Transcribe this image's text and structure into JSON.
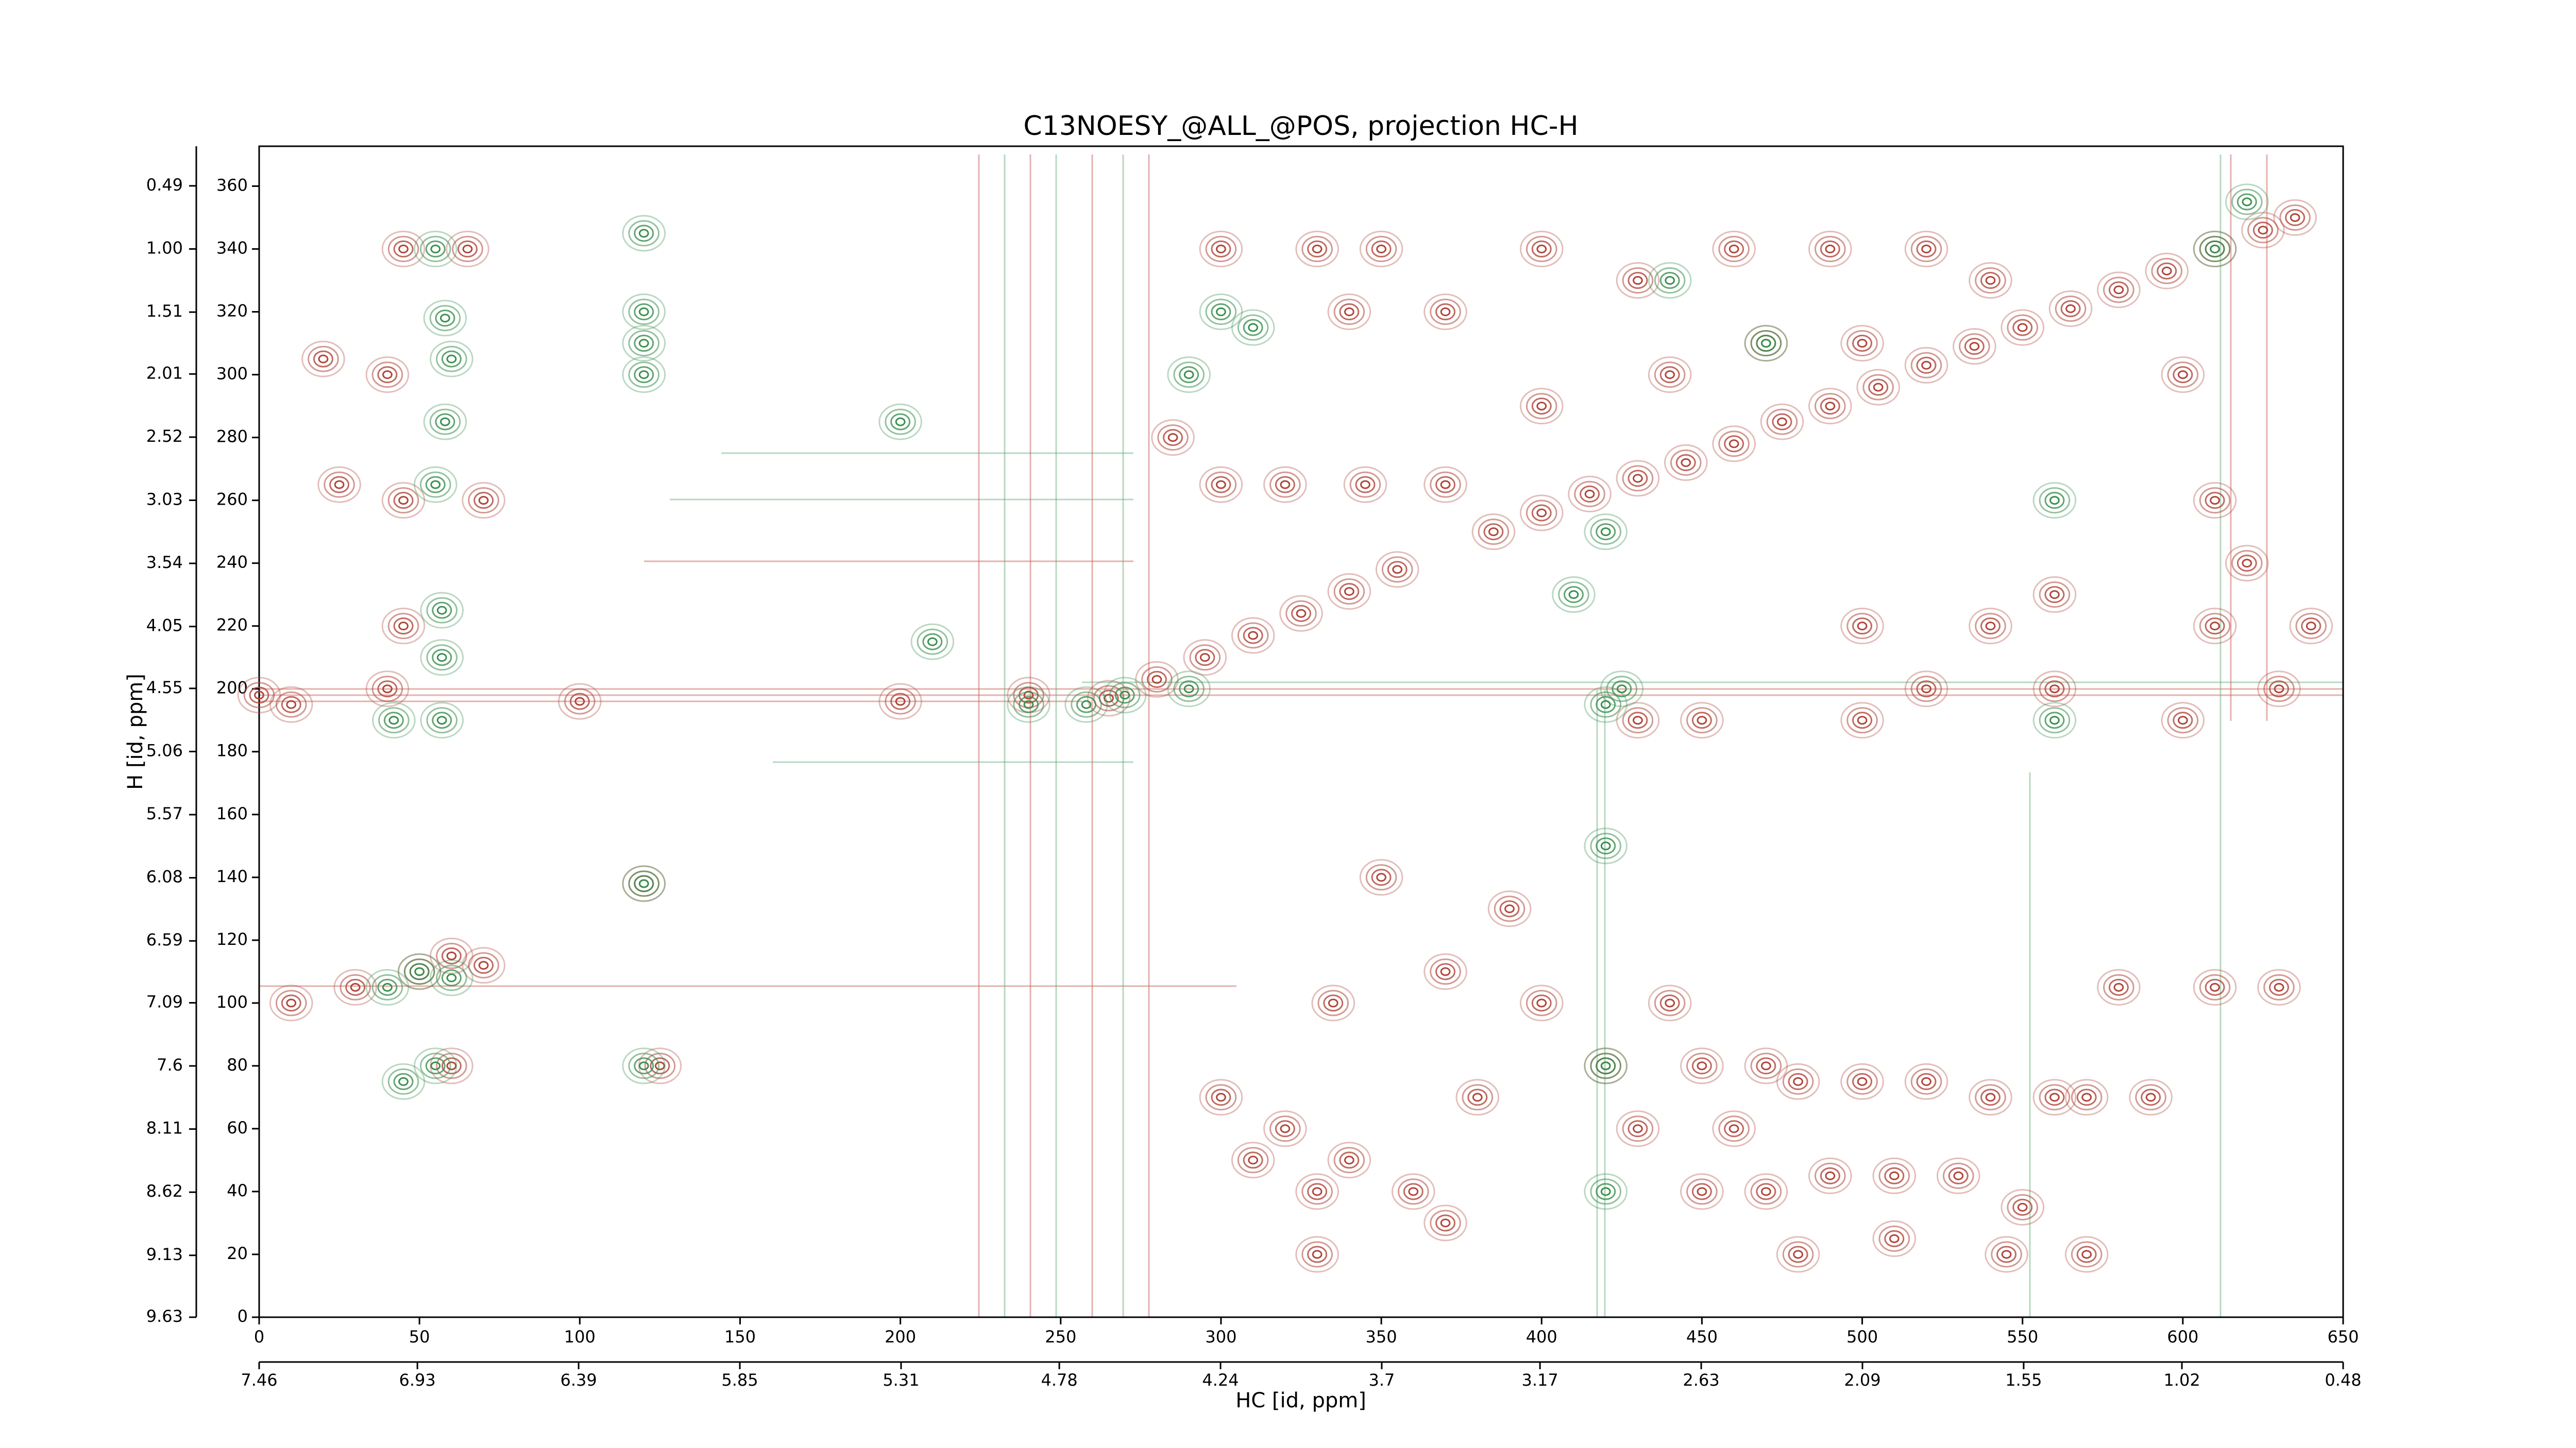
{
  "chart_data": {
    "type": "contour",
    "title": "C13NOESY_@ALL_@POS, projection HC-H",
    "x_label": "HC [id, ppm]",
    "y_label": "H [id, ppm]",
    "xlim": [
      0,
      650
    ],
    "xticks": [
      0,
      50,
      100,
      150,
      200,
      250,
      300,
      350,
      400,
      450,
      500,
      550,
      600,
      650
    ],
    "x2lim": [
      7.46,
      0.48
    ],
    "x2ticks": [
      7.46,
      6.93,
      6.39,
      5.85,
      5.31,
      4.78,
      4.24,
      3.7,
      3.17,
      2.63,
      2.09,
      1.55,
      1.02,
      0.48
    ],
    "ylim": [
      0,
      372.7
    ],
    "yticks": [
      0,
      20,
      40,
      60,
      80,
      100,
      120,
      140,
      160,
      180,
      200,
      220,
      240,
      260,
      280,
      300,
      320,
      340,
      360
    ],
    "y2lim": [
      9.63,
      0.17
    ],
    "y2ticks": [
      9.63,
      9.13,
      8.62,
      8.11,
      7.6,
      7.09,
      6.59,
      6.08,
      5.57,
      5.06,
      4.55,
      4.05,
      3.54,
      3.03,
      2.52,
      2.01,
      1.51,
      {
        "value": 1,
        "label": "1.00"
      },
      0.49
    ],
    "series": [
      {
        "color": "#b0453a",
        "x": [
          265,
          280,
          295,
          310,
          325,
          340,
          355,
          385,
          400,
          415,
          430,
          445,
          460,
          475,
          490,
          505,
          520,
          535,
          550,
          565,
          580,
          595,
          610,
          625,
          635,
          350,
          330,
          300,
          340,
          370,
          400,
          430,
          460,
          490,
          520,
          540,
          285,
          300,
          320,
          345,
          370,
          400,
          440,
          470,
          500,
          600,
          610,
          620,
          640,
          610,
          630,
          600,
          430,
          450,
          500,
          520,
          560,
          500,
          540,
          560,
          300,
          320,
          340,
          360,
          310,
          330,
          380,
          400,
          420,
          430,
          440,
          450,
          460,
          450,
          470,
          480,
          500,
          520,
          540,
          560,
          570,
          590,
          470,
          490,
          510,
          530,
          550,
          480,
          510,
          545,
          570,
          580,
          610,
          630,
          335,
          350,
          370,
          390,
          330,
          370,
          10,
          30,
          50,
          60,
          70,
          40,
          10,
          20,
          40,
          25,
          45,
          45,
          120,
          125,
          60,
          45,
          65,
          70,
          0,
          100,
          200,
          240
        ],
        "y": [
          197,
          203,
          210,
          217,
          224,
          231,
          238,
          250,
          256,
          262,
          267,
          272,
          278,
          285,
          290,
          296,
          303,
          309,
          315,
          321,
          327,
          333,
          340,
          346,
          350,
          340,
          340,
          340,
          320,
          320,
          340,
          330,
          340,
          340,
          340,
          330,
          280,
          265,
          265,
          265,
          265,
          290,
          300,
          310,
          310,
          300,
          260,
          240,
          220,
          220,
          200,
          190,
          190,
          190,
          190,
          200,
          200,
          220,
          220,
          230,
          70,
          60,
          50,
          40,
          50,
          40,
          70,
          100,
          80,
          60,
          100,
          80,
          60,
          40,
          80,
          75,
          75,
          75,
          70,
          70,
          70,
          70,
          40,
          45,
          45,
          45,
          35,
          20,
          25,
          20,
          20,
          105,
          105,
          105,
          100,
          140,
          110,
          130,
          20,
          30,
          100,
          105,
          110,
          115,
          112,
          200,
          195,
          305,
          300,
          265,
          260,
          220,
          138,
          80,
          80,
          340,
          340,
          260,
          198,
          196,
          196,
          198
        ]
      },
      {
        "color": "#3a8f4f",
        "x": [
          55,
          58,
          60,
          58,
          55,
          57,
          57,
          42,
          57,
          120,
          120,
          120,
          120,
          120,
          120,
          50,
          60,
          40,
          55,
          45,
          290,
          300,
          310,
          425,
          420,
          440,
          470,
          560,
          610,
          620,
          270,
          420,
          420,
          420,
          420,
          560,
          410,
          200,
          210,
          240,
          258,
          290
        ],
        "y": [
          340,
          318,
          305,
          285,
          265,
          225,
          210,
          190,
          190,
          345,
          320,
          310,
          300,
          138,
          80,
          110,
          108,
          105,
          80,
          75,
          300,
          320,
          315,
          200,
          250,
          330,
          310,
          260,
          340,
          355,
          198,
          195,
          150,
          80,
          40,
          190,
          230,
          285,
          215,
          195,
          195,
          200
        ]
      }
    ]
  }
}
